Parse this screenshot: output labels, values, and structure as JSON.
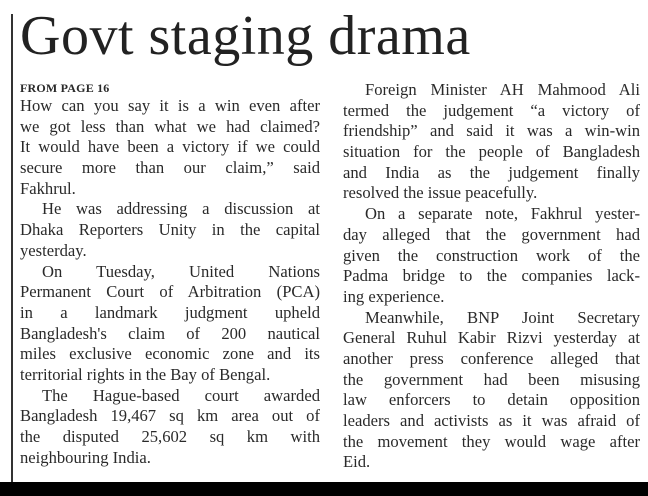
{
  "headline": "Govt staging drama",
  "kicker": "FROM PAGE 16",
  "columns": [
    [
      {
        "indent": false,
        "lines": [
          "How can you say it is a win even after",
          "we got less than what we had claimed?",
          "It would have been a victory if we could",
          "secure more than our claim,” said",
          "Fakhrul."
        ]
      },
      {
        "indent": true,
        "lines": [
          "He was addressing a discussion at",
          "Dhaka Reporters Unity in the capital",
          "yesterday."
        ]
      },
      {
        "indent": true,
        "lines": [
          "On Tuesday, United Nations",
          "Permanent Court of Arbitration (PCA)",
          "in a landmark judgment upheld",
          "Bangladesh's claim of 200 nautical",
          "miles exclusive economic zone and its",
          "territorial rights in the Bay of Bengal."
        ]
      },
      {
        "indent": true,
        "lines": [
          "The Hague-based court awarded",
          "Bangladesh 19,467 sq km area out of",
          "the disputed 25,602 sq km with",
          "neighbouring India."
        ]
      }
    ],
    [
      {
        "indent": true,
        "lines": [
          "Foreign Minister AH Mahmood Ali",
          "termed the judgement “a victory of",
          "friendship” and said it was a win-win",
          "situation for the people of Bangladesh",
          "and India as the judgement finally",
          "resolved the issue peacefully."
        ]
      },
      {
        "indent": true,
        "lines": [
          "On a separate note, Fakhrul yester-",
          "day alleged that the government had",
          "given the construction work of the",
          "Padma bridge to the companies lack-",
          "ing experience."
        ]
      },
      {
        "indent": true,
        "lines": [
          "Meanwhile, BNP Joint Secretary",
          "General Ruhul Kabir Rizvi yesterday at",
          "another press conference alleged that",
          "the government had been misusing",
          "law enforcers to detain opposition",
          "leaders and activists as it was afraid of",
          "the movement they would wage after",
          "Eid."
        ]
      }
    ]
  ]
}
